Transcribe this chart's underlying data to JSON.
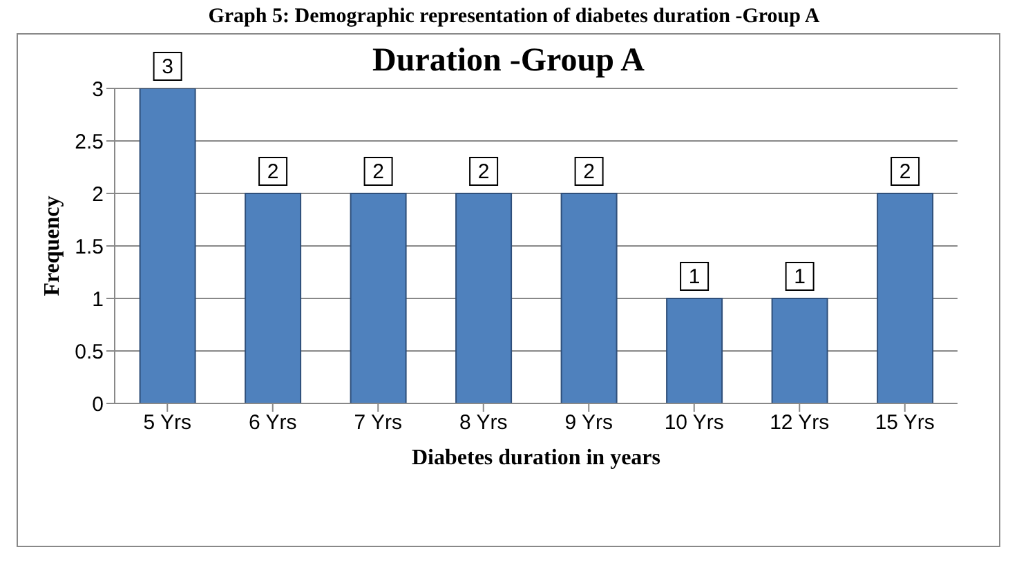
{
  "chart_data": {
    "type": "bar",
    "title": "Duration -Group A",
    "xlabel": "Diabetes duration in years",
    "ylabel": "Frequency",
    "annotations": [
      "Graph 5: Demographic representation of diabetes duration -Group A"
    ],
    "categories": [
      "5  Yrs",
      "6  Yrs",
      "7  Yrs",
      "8  Yrs",
      "9  Yrs",
      "10  Yrs",
      "12  Yrs",
      "15  Yrs"
    ],
    "values": [
      3,
      2,
      2,
      2,
      2,
      1,
      1,
      2
    ],
    "color": "#4f81bd",
    "ylim": [
      0,
      3
    ],
    "yticks": [
      0,
      0.5,
      1,
      1.5,
      2,
      2.5,
      3
    ],
    "grid": "y",
    "data_labels": true
  }
}
